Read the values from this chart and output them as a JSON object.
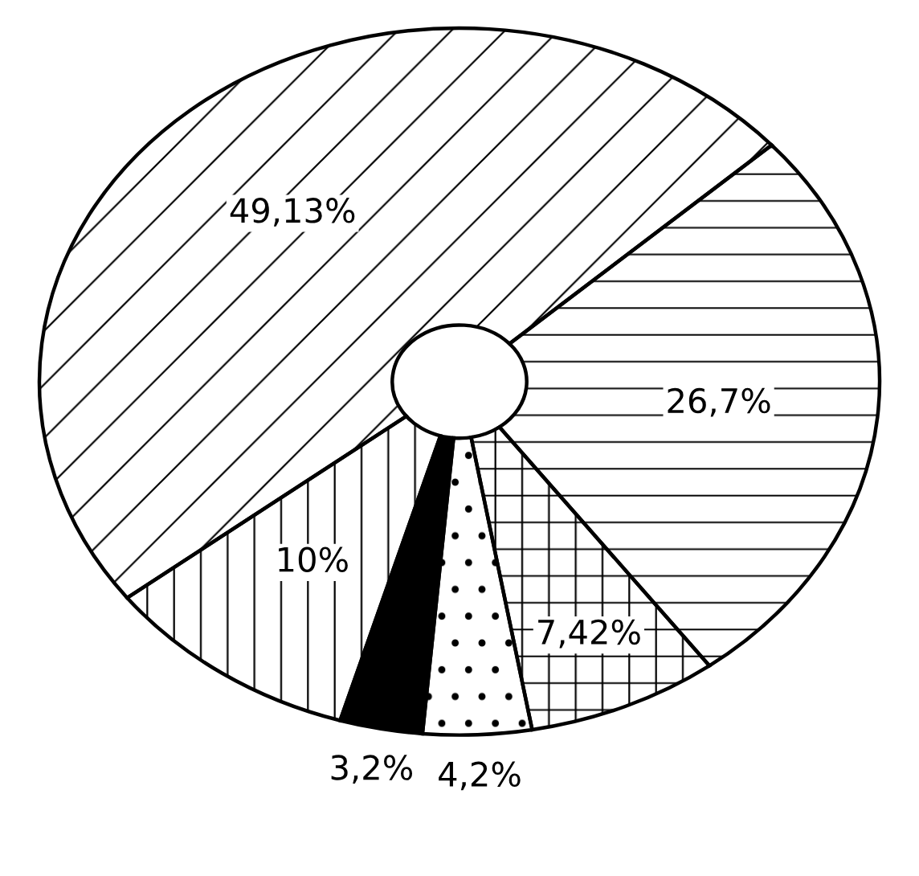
{
  "chart_data": {
    "type": "donut",
    "categories": [
      null,
      null,
      null,
      null,
      null,
      null
    ],
    "values": [
      26.7,
      7.42,
      4.2,
      3.2,
      10,
      49.13
    ],
    "colors": [
      "#ffffff",
      "#ffffff",
      "#ffffff",
      "#000000",
      "#ffffff",
      "#ffffff"
    ],
    "value_labels": [
      "26,7%",
      "7,42%",
      "4,2%",
      "3,2%",
      "10%",
      "49,13%"
    ]
  }
}
